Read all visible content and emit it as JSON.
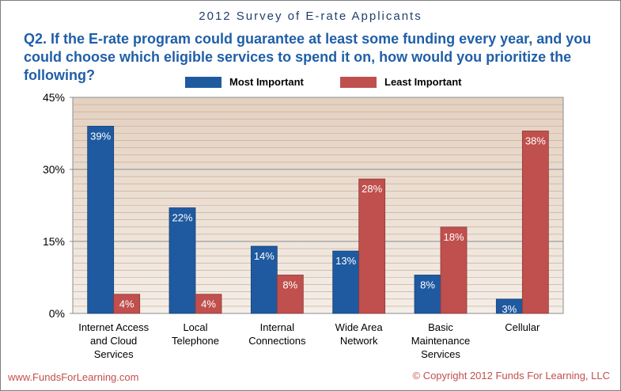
{
  "header": {
    "survey_title": "2012 Survey of E-rate Applicants",
    "question": "Q2. If the E-rate program could guarantee at least some funding every year, and you could choose which eligible services to spend it on, how would you prioritize the following?"
  },
  "footer": {
    "website": "www.FundsForLearning.com",
    "copyright": "© Copyright 2012  Funds For Learning, LLC"
  },
  "colors": {
    "most_important": "#1f5aa0",
    "least_important": "#c0504d",
    "plot_background": "#ede3d8",
    "grid": "#c8a58a"
  },
  "chart_data": {
    "type": "bar",
    "title": "",
    "xlabel": "",
    "ylabel": "",
    "ylim": [
      0,
      45
    ],
    "yticks": [
      0,
      15,
      30,
      45
    ],
    "ytick_labels": [
      "0%",
      "15%",
      "30%",
      "45%"
    ],
    "categories": [
      [
        "Internet Access",
        "and Cloud",
        "Services"
      ],
      [
        "Local",
        "Telephone"
      ],
      [
        "Internal",
        "Connections"
      ],
      [
        "Wide Area",
        "Network"
      ],
      [
        "Basic",
        "Maintenance",
        "Services"
      ],
      [
        "Cellular"
      ]
    ],
    "series": [
      {
        "name": "Most Important",
        "values": [
          39,
          22,
          14,
          13,
          8,
          3
        ],
        "labels": [
          "39%",
          "22%",
          "14%",
          "13%",
          "8%",
          "3%"
        ]
      },
      {
        "name": "Least Important",
        "values": [
          4,
          4,
          8,
          28,
          18,
          38
        ],
        "labels": [
          "4%",
          "4%",
          "8%",
          "28%",
          "18%",
          "38%"
        ]
      }
    ],
    "legend_position": "top",
    "grid": true
  }
}
